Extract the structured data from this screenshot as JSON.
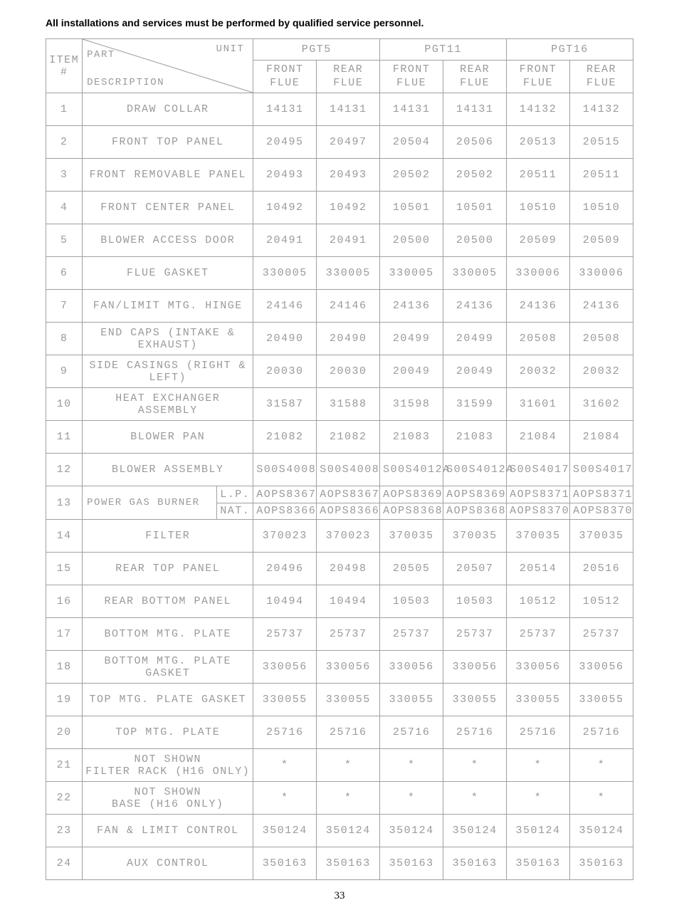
{
  "heading": "All installations and services must be performed by qualified service personnel.",
  "page_number": "33",
  "colors": {
    "border": "#a0a0a0",
    "text": "#9a9a9a",
    "heading": "#000000",
    "bg": "#ffffff"
  },
  "header": {
    "corner": {
      "unit": "UNIT",
      "part": "PART",
      "desc": "DESCRIPTION",
      "item": "ITEM\n#"
    },
    "units": [
      "PGT5",
      "PGT11",
      "PGT16"
    ],
    "sub": {
      "front": "FRONT\nFLUE",
      "rear": "REAR\nFLUE"
    }
  },
  "rows": [
    {
      "n": "1",
      "d": "DRAW COLLAR",
      "v": [
        "14131",
        "14131",
        "14131",
        "14131",
        "14132",
        "14132"
      ]
    },
    {
      "n": "2",
      "d": "FRONT TOP PANEL",
      "v": [
        "20495",
        "20497",
        "20504",
        "20506",
        "20513",
        "20515"
      ]
    },
    {
      "n": "3",
      "d": "FRONT REMOVABLE PANEL",
      "v": [
        "20493",
        "20493",
        "20502",
        "20502",
        "20511",
        "20511"
      ]
    },
    {
      "n": "4",
      "d": "FRONT CENTER PANEL",
      "v": [
        "10492",
        "10492",
        "10501",
        "10501",
        "10510",
        "10510"
      ]
    },
    {
      "n": "5",
      "d": "BLOWER ACCESS DOOR",
      "v": [
        "20491",
        "20491",
        "20500",
        "20500",
        "20509",
        "20509"
      ]
    },
    {
      "n": "6",
      "d": "FLUE GASKET",
      "v": [
        "330005",
        "330005",
        "330005",
        "330005",
        "330006",
        "330006"
      ]
    },
    {
      "n": "7",
      "d": "FAN/LIMIT MTG. HINGE",
      "v": [
        "24146",
        "24146",
        "24136",
        "24136",
        "24136",
        "24136"
      ]
    },
    {
      "n": "8",
      "d": "END CAPS (INTAKE & EXHAUST)",
      "v": [
        "20490",
        "20490",
        "20499",
        "20499",
        "20508",
        "20508"
      ]
    },
    {
      "n": "9",
      "d": "SIDE CASINGS (RIGHT & LEFT)",
      "v": [
        "20030",
        "20030",
        "20049",
        "20049",
        "20032",
        "20032"
      ]
    },
    {
      "n": "10",
      "d": "HEAT EXCHANGER ASSEMBLY",
      "v": [
        "31587",
        "31588",
        "31598",
        "31599",
        "31601",
        "31602"
      ]
    },
    {
      "n": "11",
      "d": "BLOWER PAN",
      "v": [
        "21082",
        "21082",
        "21083",
        "21083",
        "21084",
        "21084"
      ]
    },
    {
      "n": "12",
      "d": "BLOWER ASSEMBLY",
      "v": [
        "S00S4008",
        "S00S4008",
        "S00S4012A",
        "S00S4012A",
        "S00S4017",
        "S00S4017"
      ],
      "small": true
    },
    {
      "n": "13",
      "d": "POWER GAS BURNER",
      "split": true,
      "a": {
        "lab": "L.P.",
        "v": [
          "AOPS8367",
          "AOPS8367",
          "AOPS8369",
          "AOPS8369",
          "AOPS8371",
          "AOPS8371"
        ]
      },
      "b": {
        "lab": "NAT.",
        "v": [
          "AOPS8366",
          "AOPS8366",
          "AOPS8368",
          "AOPS8368",
          "AOPS8370",
          "AOPS8370"
        ]
      }
    },
    {
      "n": "14",
      "d": "FILTER",
      "v": [
        "370023",
        "370023",
        "370035",
        "370035",
        "370035",
        "370035"
      ]
    },
    {
      "n": "15",
      "d": "REAR TOP PANEL",
      "v": [
        "20496",
        "20498",
        "20505",
        "20507",
        "20514",
        "20516"
      ]
    },
    {
      "n": "16",
      "d": "REAR BOTTOM PANEL",
      "v": [
        "10494",
        "10494",
        "10503",
        "10503",
        "10512",
        "10512"
      ]
    },
    {
      "n": "17",
      "d": "BOTTOM MTG. PLATE",
      "v": [
        "25737",
        "25737",
        "25737",
        "25737",
        "25737",
        "25737"
      ]
    },
    {
      "n": "18",
      "d": "BOTTOM MTG. PLATE GASKET",
      "center": true,
      "v": [
        "330056",
        "330056",
        "330056",
        "330056",
        "330056",
        "330056"
      ]
    },
    {
      "n": "19",
      "d": "TOP MTG. PLATE GASKET",
      "center": true,
      "v": [
        "330055",
        "330055",
        "330055",
        "330055",
        "330055",
        "330055"
      ]
    },
    {
      "n": "20",
      "d": "TOP MTG. PLATE",
      "v": [
        "25716",
        "25716",
        "25716",
        "25716",
        "25716",
        "25716"
      ]
    },
    {
      "n": "21",
      "d": "NOT SHOWN\nFILTER RACK (H16 ONLY)",
      "v": [
        "*",
        "*",
        "*",
        "*",
        "*",
        "*"
      ]
    },
    {
      "n": "22",
      "d": "NOT SHOWN\nBASE (H16 ONLY)",
      "v": [
        "*",
        "*",
        "*",
        "*",
        "*",
        "*"
      ]
    },
    {
      "n": "23",
      "d": "FAN & LIMIT CONTROL",
      "v": [
        "350124",
        "350124",
        "350124",
        "350124",
        "350124",
        "350124"
      ]
    },
    {
      "n": "24",
      "d": "AUX CONTROL",
      "v": [
        "350163",
        "350163",
        "350163",
        "350163",
        "350163",
        "350163"
      ]
    }
  ]
}
